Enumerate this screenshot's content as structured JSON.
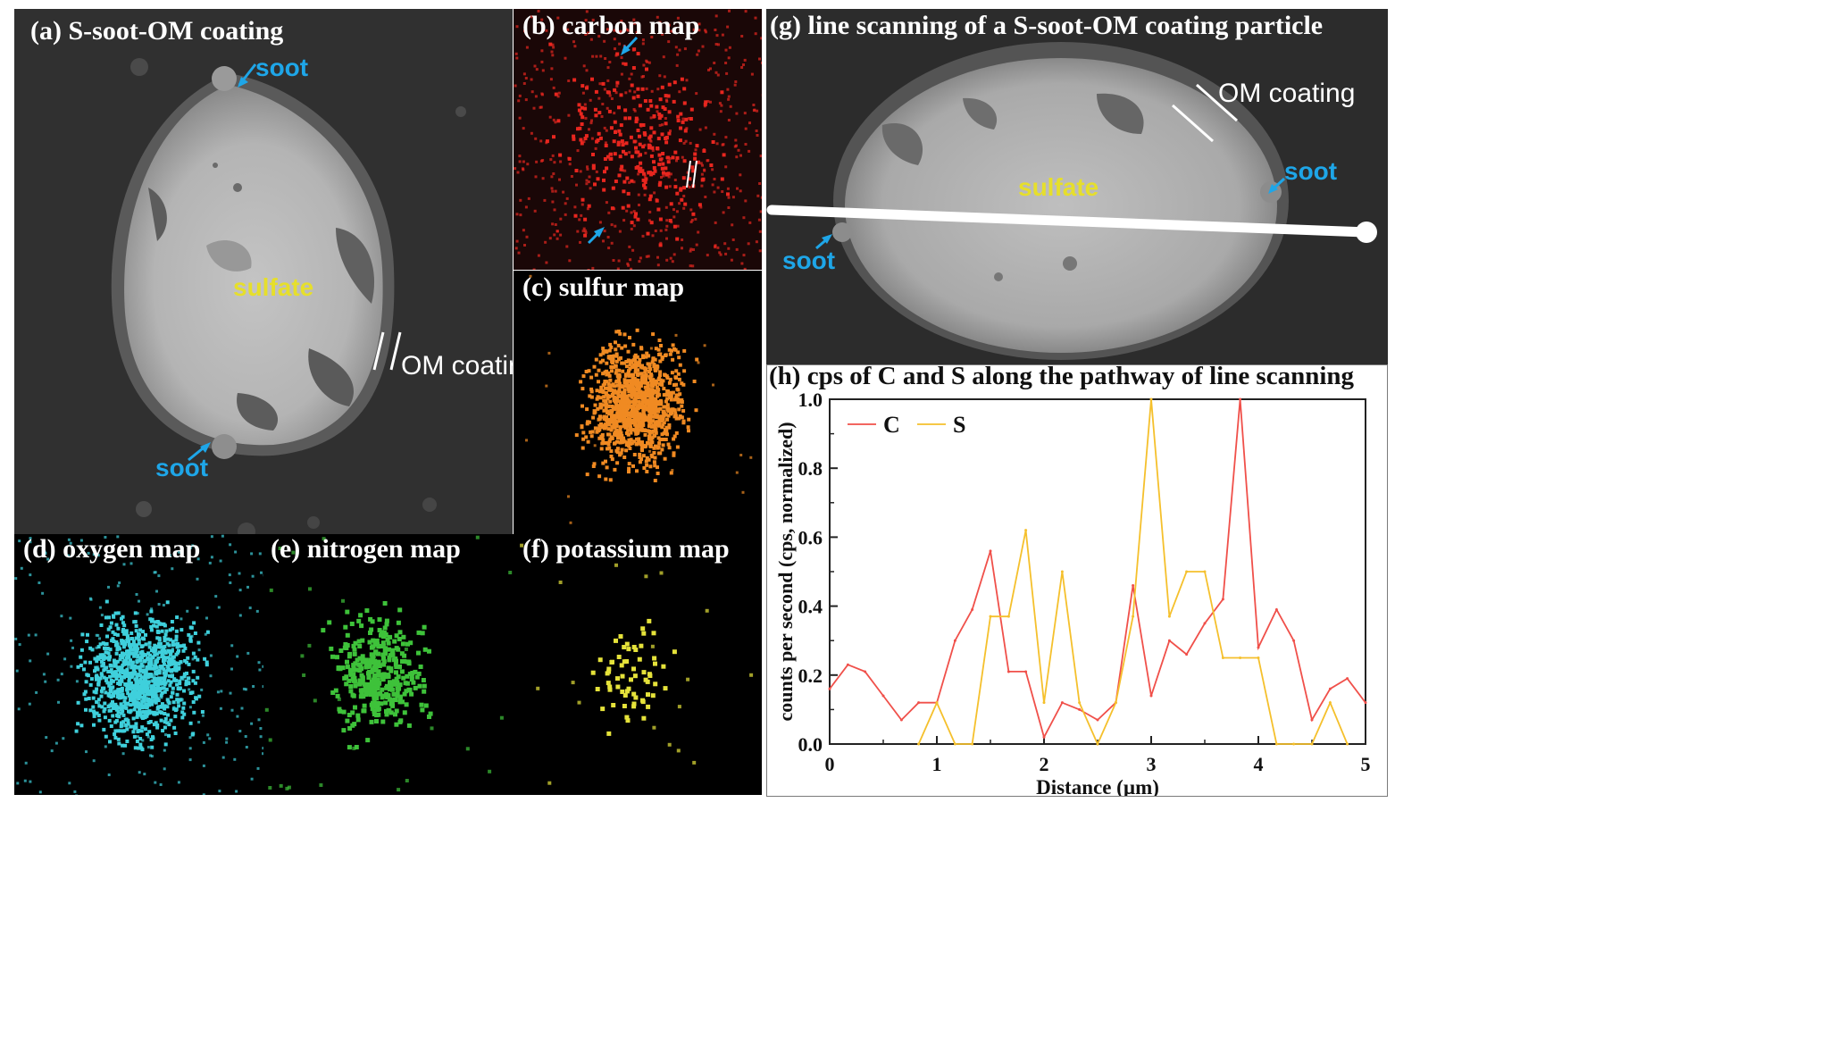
{
  "panels": {
    "a": {
      "label": "(a) S-soot-OM coating",
      "annotations": {
        "soot_top": "soot",
        "soot_bottom": "soot",
        "sulfate": "sulfate",
        "om": "OM coating"
      }
    },
    "b": {
      "label": "(b) carbon map"
    },
    "c": {
      "label": "(c) sulfur map"
    },
    "d": {
      "label": "(d) oxygen map"
    },
    "e": {
      "label": "(e) nitrogen map"
    },
    "f": {
      "label": "(f) potassium map"
    },
    "g": {
      "label": "(g) line scanning of a S-soot-OM coating particle",
      "annotations": {
        "om": "OM coating",
        "soot_right": "soot",
        "soot_left": "soot",
        "sulfate": "sulfate"
      }
    },
    "h": {
      "label": "(h) cps of C and S along the pathway of line scanning"
    }
  },
  "colors": {
    "carbon": "#e8261f",
    "sulfur": "#f08a22",
    "oxygen": "#3fd0dc",
    "nitrogen": "#3ec23a",
    "potassium": "#e5e23a",
    "annotation_blue": "#1ea6e8",
    "annotation_yellow": "#e6df2b",
    "series_C": "#f0504a",
    "series_S": "#f5c02c"
  },
  "chart_data": {
    "type": "line",
    "xlabel": "Distance (µm)",
    "ylabel": "counts per second (cps, normalized)",
    "xlim": [
      0,
      5
    ],
    "ylim": [
      0,
      1
    ],
    "xticks": [
      "0",
      "1",
      "2",
      "3",
      "4",
      "5"
    ],
    "yticks": [
      "0.0",
      "0.2",
      "0.4",
      "0.6",
      "0.8",
      "1.0"
    ],
    "legend_position": "top-left",
    "series": [
      {
        "name": "C",
        "color": "#f0504a",
        "x": [
          0,
          0.17,
          0.33,
          0.5,
          0.67,
          0.83,
          1.0,
          1.17,
          1.33,
          1.5,
          1.67,
          1.83,
          2.0,
          2.17,
          2.33,
          2.5,
          2.67,
          2.83,
          3.0,
          3.17,
          3.33,
          3.5,
          3.67,
          3.83,
          4.0,
          4.17,
          4.33,
          4.5,
          4.67,
          4.83,
          5.0
        ],
        "y": [
          0.16,
          0.23,
          0.21,
          0.14,
          0.07,
          0.12,
          0.12,
          0.3,
          0.39,
          0.56,
          0.21,
          0.21,
          0.02,
          0.12,
          0.1,
          0.07,
          0.12,
          0.46,
          0.14,
          0.3,
          0.26,
          0.35,
          0.42,
          1.0,
          0.28,
          0.39,
          0.3,
          0.07,
          0.16,
          0.19,
          0.12
        ]
      },
      {
        "name": "S",
        "color": "#f5c02c",
        "x": [
          0.83,
          1.0,
          1.17,
          1.33,
          1.5,
          1.67,
          1.83,
          2.0,
          2.17,
          2.33,
          2.5,
          2.67,
          2.83,
          3.0,
          3.17,
          3.33,
          3.5,
          3.67,
          3.83,
          4.0,
          4.17,
          4.33,
          4.5,
          4.67,
          4.83
        ],
        "y": [
          0.0,
          0.12,
          0.0,
          0.0,
          0.37,
          0.37,
          0.62,
          0.12,
          0.5,
          0.12,
          0.0,
          0.12,
          0.37,
          1.0,
          0.37,
          0.5,
          0.5,
          0.25,
          0.25,
          0.25,
          0.0,
          0.0,
          0.0,
          0.12,
          0.0
        ]
      }
    ]
  }
}
